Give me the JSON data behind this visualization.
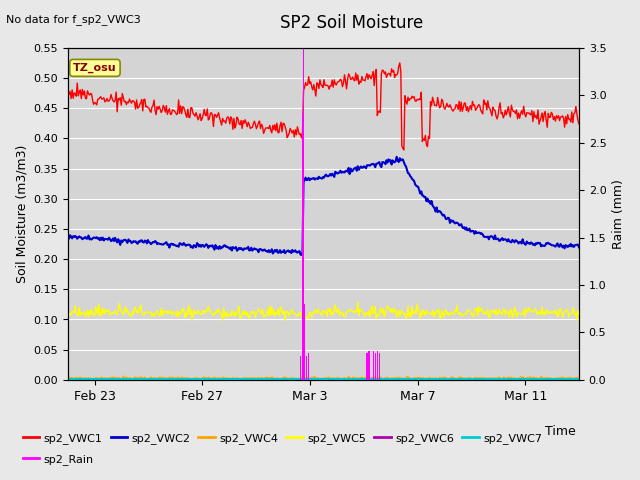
{
  "title": "SP2 Soil Moisture",
  "subtitle": "No data for f_sp2_VWC3",
  "ylabel_left": "Soil Moisture (m3/m3)",
  "ylabel_right": "Raim (mm)",
  "xlabel": "Time",
  "tz_label": "TZ_osu",
  "ylim_left": [
    0.0,
    0.55
  ],
  "ylim_right": [
    0.0,
    3.5
  ],
  "background_color": "#e8e8e8",
  "plot_bg_color": "#d4d4d4",
  "grid_color": "#ffffff",
  "title_fontsize": 12,
  "axis_fontsize": 9,
  "tick_fontsize": 8,
  "legend_entries": [
    {
      "label": "sp2_VWC1",
      "color": "#ff0000"
    },
    {
      "label": "sp2_VWC2",
      "color": "#0000cc"
    },
    {
      "label": "sp2_VWC4",
      "color": "#ffa500"
    },
    {
      "label": "sp2_VWC5",
      "color": "#ffff00"
    },
    {
      "label": "sp2_VWC6",
      "color": "#aa00aa"
    },
    {
      "label": "sp2_VWC7",
      "color": "#00cccc"
    },
    {
      "label": "sp2_Rain",
      "color": "#ff00ff"
    }
  ],
  "xtick_labels": [
    "Feb 23",
    "Feb 27",
    "Mar 3",
    "Mar 7",
    "Mar 11"
  ],
  "n_points": 500,
  "idx_mar3": 230,
  "idx_mar6": 302,
  "idx_mar7": 326,
  "idx_mar8": 350
}
